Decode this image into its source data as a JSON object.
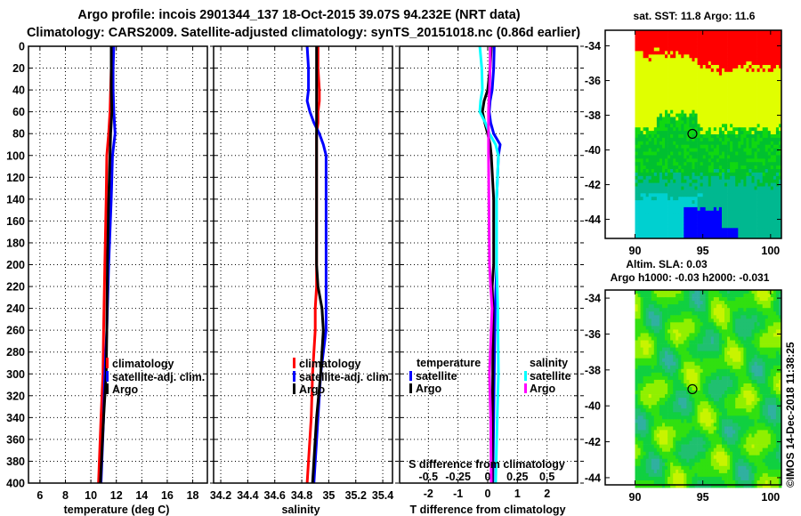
{
  "title_line1": "Argo profile: incois 2901344_137 18-Oct-2015 39.07S 94.232E (NRT data)",
  "title_line2": "Climatology: CARS2009. Satellite-adjusted climatology: synTS_20151018.nc (0.86d earlier)",
  "credit": "©IMOS 14-Dec-2018 11:38:25",
  "colors": {
    "climatology": "#ff0000",
    "satellite": "#0000ff",
    "argo": "#000000",
    "s_satellite": "#00ffff",
    "s_argo": "#ff00ff"
  },
  "chart_data": [
    {
      "type": "line",
      "name": "temperature",
      "xlabel": "temperature (deg C)",
      "ylabel": "",
      "xlim": [
        5.1,
        19.15
      ],
      "ylim": [
        400,
        0
      ],
      "xticks": [
        "6",
        "8",
        "10",
        "12",
        "14",
        "16",
        "18"
      ],
      "yticks": [
        "0",
        "20",
        "40",
        "60",
        "80",
        "100",
        "120",
        "140",
        "160",
        "180",
        "200",
        "220",
        "240",
        "260",
        "280",
        "300",
        "320",
        "340",
        "360",
        "380",
        "400"
      ],
      "grid": true,
      "legend": [
        "climatology",
        "satellite-adj. clim.",
        "Argo"
      ],
      "depth": [
        0,
        20,
        40,
        60,
        80,
        100,
        140,
        200,
        260,
        300,
        340,
        400
      ],
      "series": [
        {
          "name": "climatology",
          "values": [
            11.6,
            11.6,
            11.55,
            11.5,
            11.4,
            11.25,
            11.2,
            11.1,
            11.0,
            10.95,
            10.8,
            10.6
          ]
        },
        {
          "name": "satellite-adj. clim.",
          "values": [
            11.8,
            11.75,
            11.75,
            11.8,
            11.9,
            11.7,
            11.6,
            11.4,
            11.25,
            11.1,
            11.0,
            10.8
          ]
        },
        {
          "name": "Argo",
          "values": [
            11.6,
            11.6,
            11.6,
            11.65,
            11.55,
            11.5,
            11.4,
            11.3,
            11.25,
            11.2,
            11.0,
            10.75
          ]
        }
      ]
    },
    {
      "type": "line",
      "name": "salinity",
      "xlabel": "salinity",
      "xlim": [
        34.147,
        35.472
      ],
      "ylim": [
        400,
        0
      ],
      "xticks": [
        "34.2",
        "34.4",
        "34.6",
        "34.8",
        "35",
        "35.2",
        "35.4"
      ],
      "grid": true,
      "legend": [
        "climatology",
        "satellite-adj. clim.",
        "Argo"
      ],
      "depth": [
        0,
        20,
        40,
        50,
        60,
        70,
        80,
        90,
        100,
        200,
        220,
        240,
        260,
        280,
        300,
        340,
        400
      ],
      "series": [
        {
          "name": "climatology",
          "values": [
            34.92,
            34.92,
            34.93,
            34.93,
            34.92,
            34.92,
            34.91,
            34.91,
            34.91,
            34.91,
            34.91,
            34.9,
            34.9,
            34.89,
            34.88,
            34.87,
            34.84
          ]
        },
        {
          "name": "satellite-adj. clim.",
          "values": [
            34.84,
            34.85,
            34.85,
            34.84,
            34.86,
            34.89,
            34.93,
            34.96,
            34.98,
            34.98,
            34.98,
            34.98,
            34.98,
            34.96,
            34.94,
            34.92,
            34.89
          ]
        },
        {
          "name": "Argo",
          "values": [
            34.91,
            34.91,
            34.91,
            34.91,
            34.91,
            34.91,
            34.91,
            34.91,
            34.91,
            34.91,
            34.92,
            34.95,
            34.96,
            34.95,
            34.94,
            34.91,
            34.88
          ]
        }
      ]
    },
    {
      "type": "line",
      "name": "difference",
      "xlabel": "T difference from climatology",
      "xlim": [
        -2.97,
        3.03
      ],
      "ylim": [
        400,
        0
      ],
      "xticks": [
        "-2",
        "-1",
        "0",
        "1",
        "2"
      ],
      "secondary_xlabel": "S difference from climatology",
      "secondary_xticks": [
        "-0.5",
        "-0.25",
        "0",
        "0.25",
        "0.5"
      ],
      "secondary_xlim": [
        -0.7425,
        0.7575
      ],
      "grid": true,
      "legend_temperature": {
        "title": "temperature",
        "items": [
          "satellite",
          "Argo"
        ]
      },
      "legend_salinity": {
        "title": "salinity",
        "items": [
          "satellite",
          "Argo"
        ]
      },
      "depth": [
        0,
        20,
        40,
        50,
        60,
        70,
        80,
        90,
        100,
        140,
        200,
        220,
        240,
        300,
        340,
        400
      ],
      "series": [
        {
          "name": "temperature satellite",
          "axis": "T",
          "values": [
            0.22,
            0.2,
            0.15,
            0.08,
            0.05,
            0.1,
            0.2,
            0.42,
            0.36,
            0.3,
            0.3,
            0.28,
            0.25,
            0.22,
            0.2,
            0.17
          ]
        },
        {
          "name": "temperature Argo",
          "axis": "T",
          "values": [
            0.12,
            0.08,
            0.0,
            -0.12,
            -0.18,
            -0.1,
            0.0,
            0.08,
            0.12,
            0.2,
            0.2,
            0.15,
            0.18,
            0.17,
            0.16,
            0.15
          ]
        },
        {
          "name": "salinity satellite",
          "axis": "S",
          "values": [
            -0.067,
            -0.05,
            -0.045,
            -0.06,
            -0.067,
            -0.02,
            0.015,
            0.067,
            0.09,
            0.075,
            0.075,
            0.08,
            0.085,
            0.09,
            0.08,
            0.067
          ]
        },
        {
          "name": "salinity Argo",
          "axis": "S",
          "values": [
            0.022,
            0.02,
            0.015,
            0.01,
            0.007,
            0.007,
            0.007,
            0.007,
            0.007,
            0.01,
            0.015,
            0.025,
            0.037,
            0.015,
            0.025,
            0.03
          ]
        }
      ]
    },
    {
      "type": "heatmap",
      "name": "sst-map",
      "title": "sat. SST: 11.8 Argo: 11.6",
      "xlim": [
        87.8,
        100.8
      ],
      "ylim": [
        -45.1,
        -33.1
      ],
      "xticks": [
        "90",
        "95",
        "100"
      ],
      "yticks": [
        "-34",
        "-36",
        "-38",
        "-40",
        "-42",
        "-44"
      ],
      "profile_location": {
        "lon": 94.232,
        "lat": -39.07
      },
      "palette": [
        "#0000ff",
        "#00d0d0",
        "#00b890",
        "#00c030",
        "#10d810",
        "#e0ff00",
        "#ff0000"
      ]
    },
    {
      "type": "heatmap",
      "name": "sla-map",
      "title": "Altim. SLA: 0.03",
      "subtitle": "Argo h1000: -0.03 h2000: -0.031",
      "xlim": [
        87.8,
        100.8
      ],
      "ylim": [
        -44.4,
        -33.55
      ],
      "xticks": [
        "90",
        "95",
        "100"
      ],
      "yticks": [
        "-34",
        "-36",
        "-38",
        "-40",
        "-42",
        "-44"
      ],
      "profile_location": {
        "lon": 94.232,
        "lat": -39.07
      },
      "palette": [
        "#30b0a0",
        "#20c070",
        "#10d040",
        "#30e010",
        "#90f000",
        "#c8f400"
      ]
    }
  ]
}
